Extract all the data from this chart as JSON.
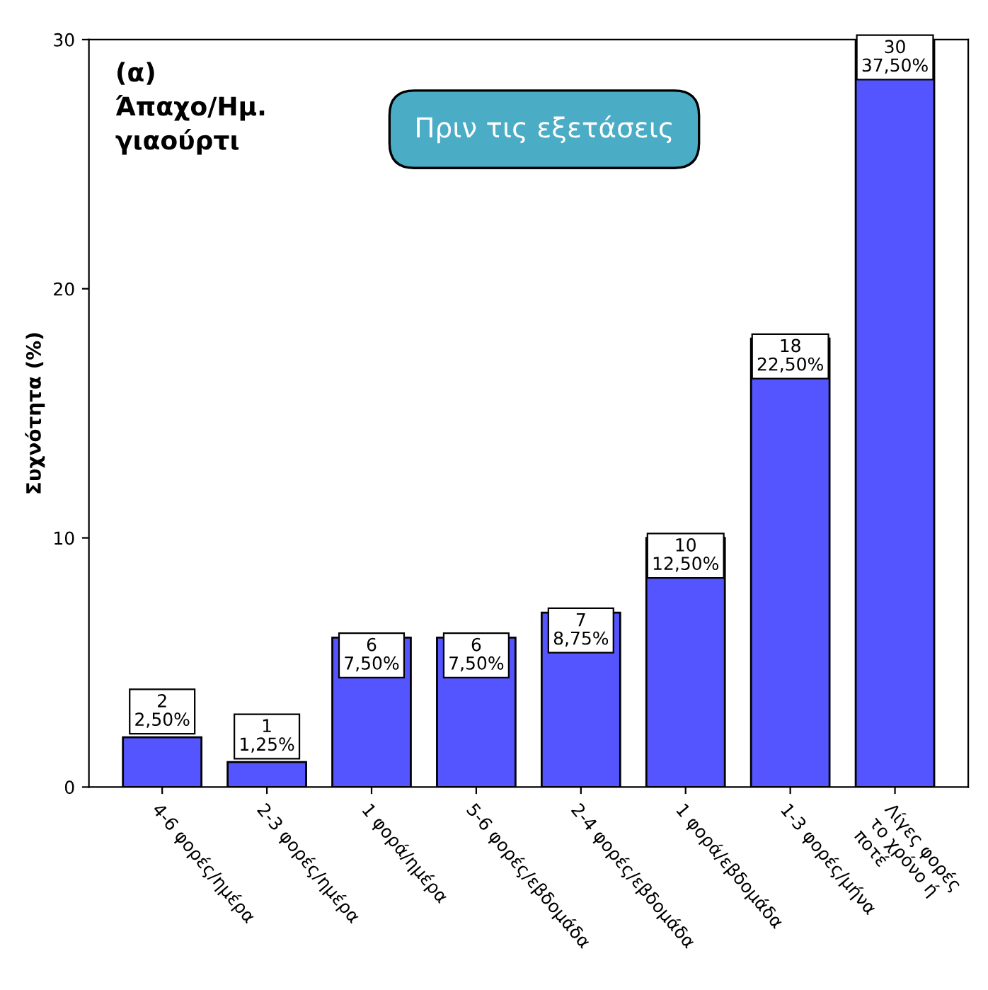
{
  "chart_data": {
    "type": "bar",
    "title": "(α)\nΆπαχο/Ημ.\nγιαούρτι",
    "ylabel": "Συχνότητα (%)",
    "categories": [
      "4-6 φορές/ημέρα",
      "2-3 φορές/ημέρα",
      "1 φορά/ημέρα",
      "5-6 φορές/εβδομάδα",
      "2-4 φορές/εβδομάδα",
      "1 φορά/εβδομάδα",
      "1-3 φορές/μήνα",
      "Λίγες φορές\nτο χρόνο ή\nποτέ"
    ],
    "values": [
      2,
      1,
      6,
      6,
      7,
      10,
      18,
      30
    ],
    "color": "#5555ff",
    "value_labels": [
      "2\n2,50%",
      "1\n1,25%",
      "6\n7,50%",
      "6\n7,50%",
      "7\n8,75%",
      "10\n12,50%",
      "18\n22,50%",
      "30\n37,50%"
    ],
    "annotations": [
      "Πριν τις εξετάσεις"
    ],
    "ylim": [
      0,
      30
    ],
    "yticks": [
      0,
      10,
      20,
      30
    ],
    "grid": false
  }
}
